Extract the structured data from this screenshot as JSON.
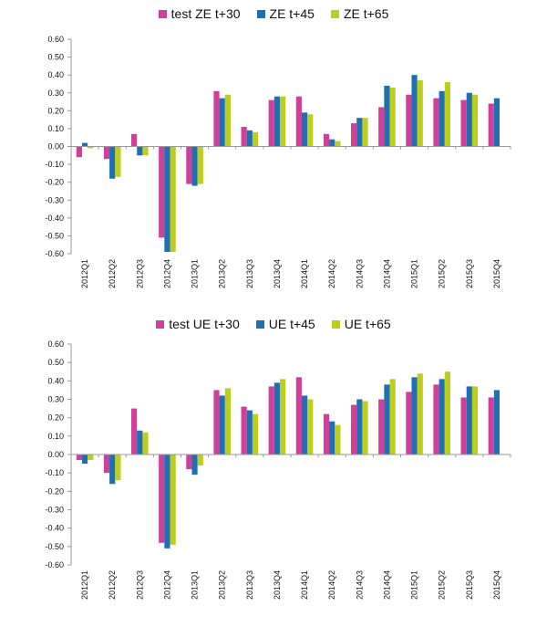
{
  "colors": {
    "series1": "#d0409a",
    "series2": "#1f6fb2",
    "series3": "#bccf1e",
    "axis": "#999999"
  },
  "chart_data": [
    {
      "type": "bar",
      "categories": [
        "2012Q1",
        "2012Q2",
        "2012Q3",
        "2012Q4",
        "2013Q1",
        "2013Q2",
        "2013Q3",
        "2013Q4",
        "2014Q1",
        "2014Q2",
        "2014Q3",
        "2014Q4",
        "2015Q1",
        "2015Q2",
        "2015Q3",
        "2015Q4"
      ],
      "series": [
        {
          "name": "test ZE t+30",
          "values": [
            -0.06,
            -0.07,
            0.07,
            -0.51,
            -0.21,
            0.31,
            0.11,
            0.26,
            0.28,
            0.07,
            0.13,
            0.22,
            0.29,
            0.27,
            0.26,
            0.24
          ]
        },
        {
          "name": "ZE t+45",
          "values": [
            0.02,
            -0.18,
            -0.05,
            -0.59,
            -0.22,
            0.27,
            0.09,
            0.28,
            0.19,
            0.04,
            0.16,
            0.34,
            0.4,
            0.31,
            0.3,
            0.27
          ]
        },
        {
          "name": "ZE t+65",
          "values": [
            -0.01,
            -0.17,
            -0.05,
            -0.59,
            -0.21,
            0.29,
            0.08,
            0.28,
            0.18,
            0.03,
            0.16,
            0.33,
            0.37,
            0.36,
            0.29,
            null
          ]
        }
      ],
      "ylim": [
        -0.6,
        0.6
      ],
      "yticks": [
        "0.60",
        "0.50",
        "0.40",
        "0.30",
        "0.20",
        "0.10",
        "0.00",
        "-0.10",
        "-0.20",
        "-0.30",
        "-0.40",
        "-0.50",
        "-0.60"
      ],
      "legend": "top-center"
    },
    {
      "type": "bar",
      "categories": [
        "2012Q1",
        "2012Q2",
        "2012Q3",
        "2012Q4",
        "2013Q1",
        "2013Q2",
        "2013Q3",
        "2013Q4",
        "2014Q1",
        "2014Q2",
        "2014Q3",
        "2014Q4",
        "2015Q1",
        "2015Q2",
        "2015Q3",
        "2015Q4"
      ],
      "series": [
        {
          "name": "test UE t+30",
          "values": [
            -0.03,
            -0.1,
            0.25,
            -0.48,
            -0.08,
            0.35,
            0.26,
            0.37,
            0.42,
            0.22,
            0.27,
            0.3,
            0.34,
            0.38,
            0.31,
            0.31
          ]
        },
        {
          "name": "UE t+45",
          "values": [
            -0.05,
            -0.16,
            0.13,
            -0.51,
            -0.11,
            0.32,
            0.24,
            0.39,
            0.32,
            0.18,
            0.3,
            0.38,
            0.42,
            0.41,
            0.37,
            0.35
          ]
        },
        {
          "name": "UE t+65",
          "values": [
            -0.03,
            -0.14,
            0.12,
            -0.49,
            -0.06,
            0.36,
            0.22,
            0.41,
            0.3,
            0.16,
            0.29,
            0.41,
            0.44,
            0.45,
            0.37,
            null
          ]
        }
      ],
      "ylim": [
        -0.6,
        0.6
      ],
      "yticks": [
        "0.60",
        "0.50",
        "0.40",
        "0.30",
        "0.20",
        "0.10",
        "0.00",
        "-0.10",
        "-0.20",
        "-0.30",
        "-0.40",
        "-0.50",
        "-0.60"
      ],
      "legend": "top-center"
    }
  ]
}
